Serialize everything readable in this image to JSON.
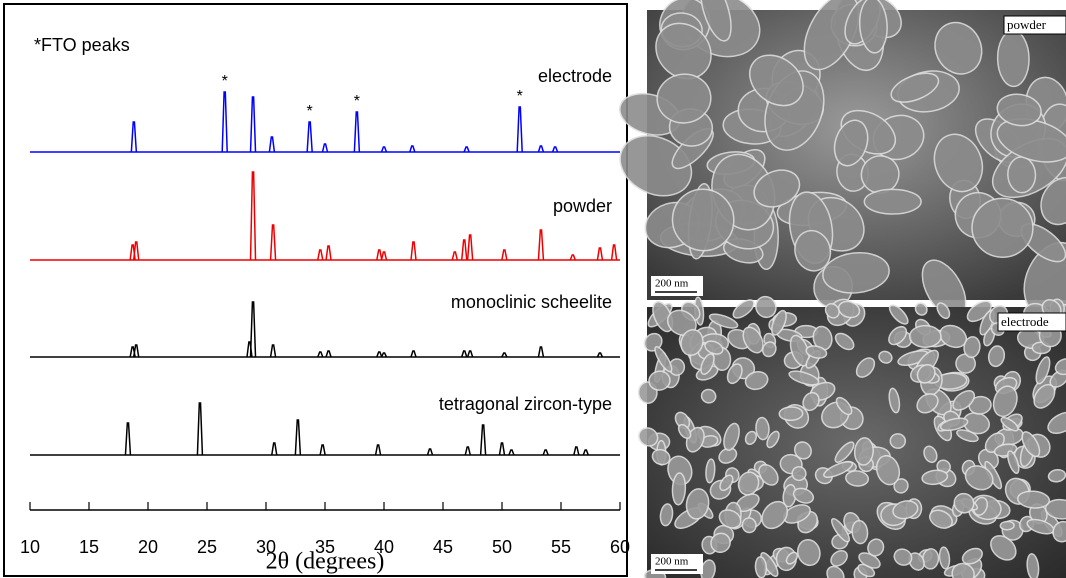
{
  "chart_data": {
    "type": "xrd",
    "xlabel": "2θ (degrees)",
    "note": "*FTO peaks",
    "xlim": [
      10,
      60
    ],
    "xticks": [
      10,
      15,
      20,
      25,
      30,
      35,
      40,
      45,
      50,
      55,
      60
    ],
    "series": [
      {
        "name": "electrode",
        "color": "#0000ff",
        "x": [
          18.8,
          26.5,
          28.9,
          30.5,
          33.7,
          35.0,
          37.7,
          40.0,
          42.4,
          47.0,
          51.5,
          53.3,
          54.5
        ],
        "values": [
          30,
          60,
          55,
          15,
          30,
          8,
          40,
          5,
          6,
          5,
          45,
          6,
          5
        ]
      },
      {
        "name": "powder",
        "color": "#ee0000",
        "x": [
          18.7,
          19.0,
          28.9,
          30.6,
          34.6,
          35.3,
          39.6,
          40.0,
          42.5,
          46.0,
          46.8,
          47.3,
          50.2,
          53.3,
          56.0,
          58.3,
          59.5
        ],
        "values": [
          15,
          18,
          88,
          35,
          10,
          14,
          10,
          8,
          18,
          8,
          20,
          25,
          10,
          30,
          5,
          12,
          15
        ]
      },
      {
        "name": "monoclinic scheelite",
        "color": "#000000",
        "x": [
          18.7,
          19.0,
          28.6,
          28.9,
          30.6,
          34.6,
          35.3,
          39.6,
          40.0,
          42.5,
          46.8,
          47.3,
          50.2,
          53.3,
          58.3
        ],
        "values": [
          10,
          12,
          15,
          55,
          12,
          5,
          6,
          5,
          4,
          6,
          6,
          6,
          4,
          10,
          4
        ]
      },
      {
        "name": "tetragonal zircon-type",
        "color": "#000000",
        "x": [
          18.3,
          24.4,
          30.7,
          32.7,
          34.8,
          39.5,
          43.9,
          47.1,
          48.4,
          50.0,
          50.8,
          53.7,
          56.3,
          57.1
        ],
        "values": [
          32,
          52,
          12,
          35,
          10,
          10,
          6,
          8,
          30,
          12,
          5,
          5,
          8,
          5
        ]
      }
    ],
    "annotations": [
      {
        "x": 26.5,
        "text": "*"
      },
      {
        "x": 33.7,
        "text": "*"
      },
      {
        "x": 37.7,
        "text": "*"
      },
      {
        "x": 51.5,
        "text": "*"
      }
    ]
  },
  "images": [
    {
      "label": "powder",
      "scale": "200 nm"
    },
    {
      "label": "electrode",
      "scale": "200 nm"
    }
  ]
}
